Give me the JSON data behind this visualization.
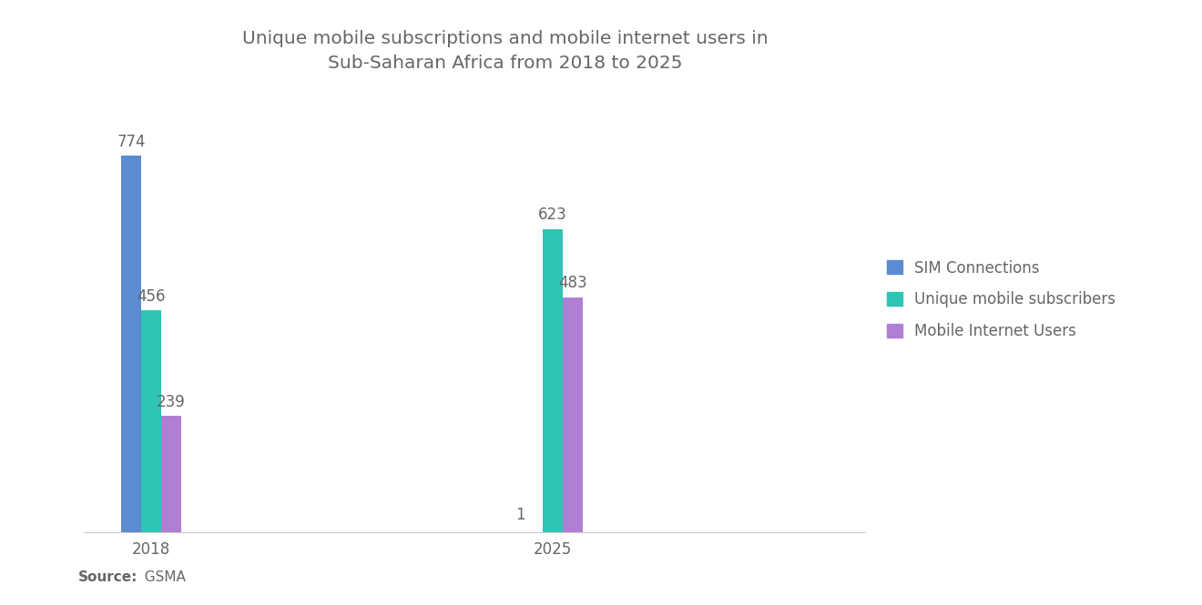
{
  "title": "Unique mobile subscriptions and mobile internet users in\nSub-Saharan Africa from 2018 to 2025",
  "title_fontsize": 14.5,
  "title_color": "#666666",
  "groups": [
    "2018",
    "2025"
  ],
  "series": [
    {
      "name": "SIM Connections",
      "values": [
        774,
        1
      ],
      "color": "#5B8BD0"
    },
    {
      "name": "Unique mobile subscribers",
      "values": [
        456,
        623
      ],
      "color": "#2EC4B6"
    },
    {
      "name": "Mobile Internet Users",
      "values": [
        239,
        483
      ],
      "color": "#B07FD4"
    }
  ],
  "ylim": [
    0,
    870
  ],
  "bar_width": 0.09,
  "source_bold": "Source:",
  "source_plain": "  GSMA",
  "source_fontsize": 11,
  "label_fontsize": 12,
  "label_color": "#666666",
  "tick_fontsize": 12,
  "tick_color": "#666666",
  "background_color": "#FFFFFF",
  "legend_fontsize": 12,
  "legend_color": "#666666"
}
